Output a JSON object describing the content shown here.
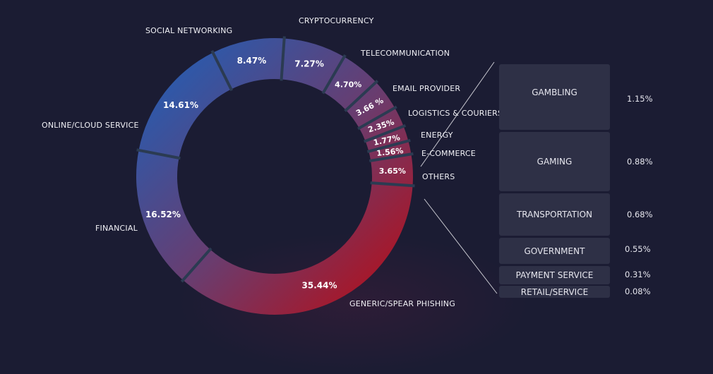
{
  "chart_data": {
    "type": "pie",
    "variant": "donut",
    "slices": [
      {
        "label": "CRYPTOCURRENCY",
        "value": 7.27,
        "display": "7.27%"
      },
      {
        "label": "TELECOMMUNICATION",
        "value": 4.7,
        "display": "4.70%"
      },
      {
        "label": "EMAIL PROVIDER",
        "value": 3.66,
        "display": "3.66 %"
      },
      {
        "label": "LOGISTICS & COURIERS",
        "value": 2.35,
        "display": "2.35%"
      },
      {
        "label": "ENERGY",
        "value": 1.77,
        "display": "1.77%"
      },
      {
        "label": "E-COMMERCE",
        "value": 1.56,
        "display": "1.56%"
      },
      {
        "label": "OTHERS",
        "value": 3.65,
        "display": "3.65%"
      },
      {
        "label": "GENERIC/SPEAR PHISHING",
        "value": 35.44,
        "display": "35.44%"
      },
      {
        "label": "FINANCIAL",
        "value": 16.52,
        "display": "16.52%"
      },
      {
        "label": "ONLINE/CLOUD SERVICE",
        "value": 14.61,
        "display": "14.61%"
      },
      {
        "label": "SOCIAL NETWORKING",
        "value": 8.47,
        "display": "8.47%"
      }
    ],
    "others_breakdown": {
      "type": "bar",
      "items": [
        {
          "label": "GAMBLING",
          "value": 1.15,
          "display": "1.15%"
        },
        {
          "label": "GAMING",
          "value": 0.88,
          "display": "0.88%"
        },
        {
          "label": "TRANSPORTATION",
          "value": 0.68,
          "display": "0.68%"
        },
        {
          "label": "GOVERNMENT",
          "value": 0.55,
          "display": "0.55%"
        },
        {
          "label": "PAYMENT SERVICE",
          "value": 0.31,
          "display": "0.31%"
        },
        {
          "label": "RETAIL/SERVICE",
          "value": 0.08,
          "display": "0.08%"
        }
      ]
    },
    "colors": {
      "start": "#2f58a8",
      "middle": "#6a3c6e",
      "end": "#b3101c",
      "divider": "#2b3b52",
      "background": "#1b1c33",
      "box": "#2e3046"
    }
  }
}
